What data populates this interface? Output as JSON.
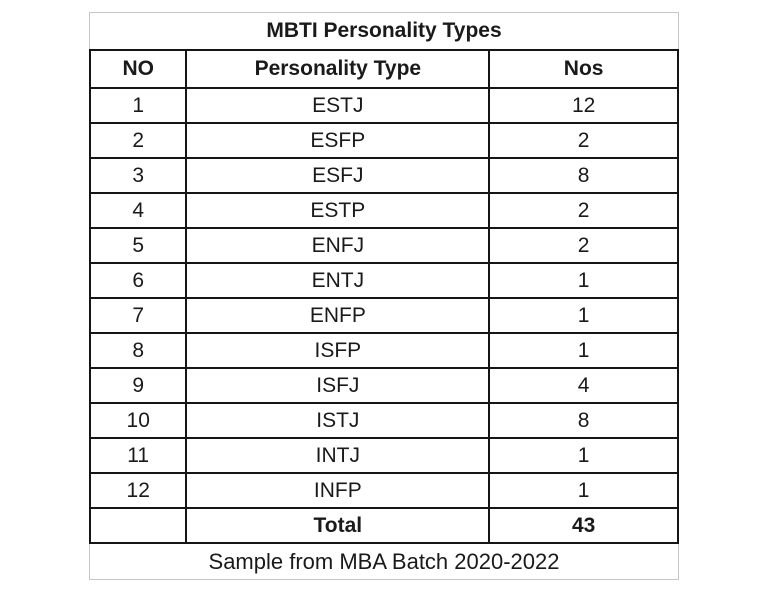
{
  "title": "MBTI Personality Types",
  "table": {
    "columns": [
      "NO",
      "Personality Type",
      "Nos"
    ],
    "rows": [
      {
        "no": "1",
        "type": "ESTJ",
        "nos": "12"
      },
      {
        "no": "2",
        "type": "ESFP",
        "nos": "2"
      },
      {
        "no": "3",
        "type": "ESFJ",
        "nos": "8"
      },
      {
        "no": "4",
        "type": "ESTP",
        "nos": "2"
      },
      {
        "no": "5",
        "type": "ENFJ",
        "nos": "2"
      },
      {
        "no": "6",
        "type": "ENTJ",
        "nos": "1"
      },
      {
        "no": "7",
        "type": "ENFP",
        "nos": "1"
      },
      {
        "no": "8",
        "type": "ISFP",
        "nos": "1"
      },
      {
        "no": "9",
        "type": "ISFJ",
        "nos": "4"
      },
      {
        "no": "10",
        "type": "ISTJ",
        "nos": "8"
      },
      {
        "no": "11",
        "type": "INTJ",
        "nos": "1"
      },
      {
        "no": "12",
        "type": "INFP",
        "nos": "1"
      }
    ],
    "total_label": "Total",
    "total_value": "43"
  },
  "footer": "Sample from MBA Batch 2020-2022",
  "colors": {
    "background": "#ffffff",
    "text": "#1a1a1a",
    "grid_border": "#151515",
    "outer_border_light": "#c6c6c6"
  }
}
